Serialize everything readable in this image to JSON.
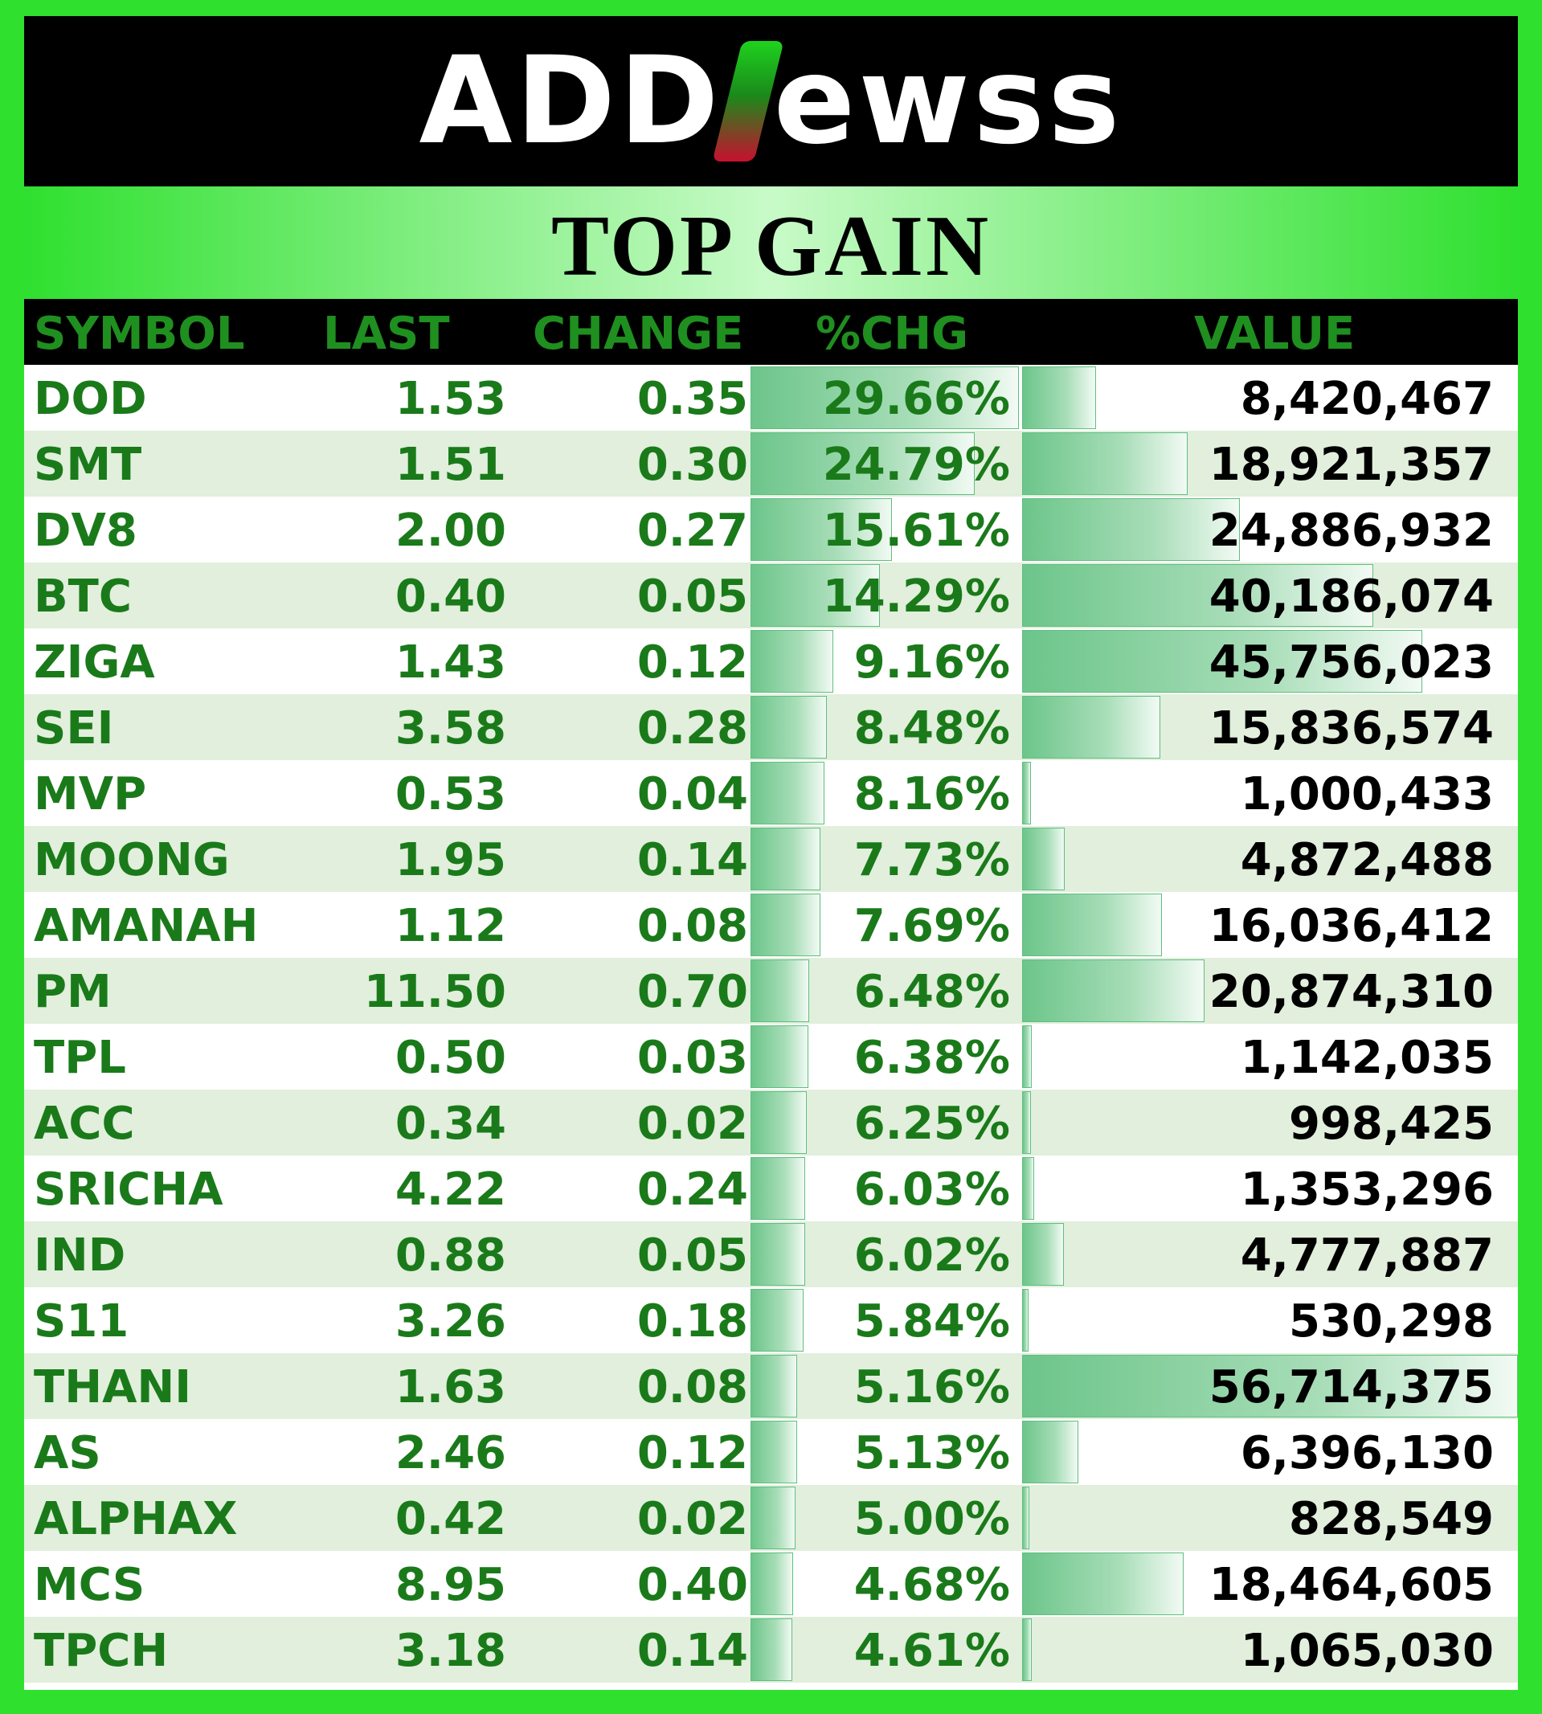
{
  "brand": {
    "prefix": "ADD",
    "suffix": "ewss"
  },
  "title": "TOP GAIN",
  "columns": [
    "SYMBOL",
    "LAST",
    "CHANGE",
    "%CHG",
    "VALUE"
  ],
  "colors": {
    "frame": "#2fe02f",
    "header_text": "#1f8f1f",
    "cell_text": "#1a7a1a",
    "value_text": "#000000",
    "bar": "#6cc58a"
  },
  "max_value": 56714375,
  "max_pct": 29.66,
  "rows": [
    {
      "symbol": "DOD",
      "last": "1.53",
      "change": "0.35",
      "pct": "29.66%",
      "value": "8,420,467",
      "pct_num": 29.66,
      "value_num": 8420467
    },
    {
      "symbol": "SMT",
      "last": "1.51",
      "change": "0.30",
      "pct": "24.79%",
      "value": "18,921,357",
      "pct_num": 24.79,
      "value_num": 18921357
    },
    {
      "symbol": "DV8",
      "last": "2.00",
      "change": "0.27",
      "pct": "15.61%",
      "value": "24,886,932",
      "pct_num": 15.61,
      "value_num": 24886932
    },
    {
      "symbol": "BTC",
      "last": "0.40",
      "change": "0.05",
      "pct": "14.29%",
      "value": "40,186,074",
      "pct_num": 14.29,
      "value_num": 40186074
    },
    {
      "symbol": "ZIGA",
      "last": "1.43",
      "change": "0.12",
      "pct": "9.16%",
      "value": "45,756,023",
      "pct_num": 9.16,
      "value_num": 45756023
    },
    {
      "symbol": "SEI",
      "last": "3.58",
      "change": "0.28",
      "pct": "8.48%",
      "value": "15,836,574",
      "pct_num": 8.48,
      "value_num": 15836574
    },
    {
      "symbol": "MVP",
      "last": "0.53",
      "change": "0.04",
      "pct": "8.16%",
      "value": "1,000,433",
      "pct_num": 8.16,
      "value_num": 1000433
    },
    {
      "symbol": "MOONG",
      "last": "1.95",
      "change": "0.14",
      "pct": "7.73%",
      "value": "4,872,488",
      "pct_num": 7.73,
      "value_num": 4872488
    },
    {
      "symbol": "AMANAH",
      "last": "1.12",
      "change": "0.08",
      "pct": "7.69%",
      "value": "16,036,412",
      "pct_num": 7.69,
      "value_num": 16036412
    },
    {
      "symbol": "PM",
      "last": "11.50",
      "change": "0.70",
      "pct": "6.48%",
      "value": "20,874,310",
      "pct_num": 6.48,
      "value_num": 20874310
    },
    {
      "symbol": "TPL",
      "last": "0.50",
      "change": "0.03",
      "pct": "6.38%",
      "value": "1,142,035",
      "pct_num": 6.38,
      "value_num": 1142035
    },
    {
      "symbol": "ACC",
      "last": "0.34",
      "change": "0.02",
      "pct": "6.25%",
      "value": "998,425",
      "pct_num": 6.25,
      "value_num": 998425
    },
    {
      "symbol": "SRICHA",
      "last": "4.22",
      "change": "0.24",
      "pct": "6.03%",
      "value": "1,353,296",
      "pct_num": 6.03,
      "value_num": 1353296
    },
    {
      "symbol": "IND",
      "last": "0.88",
      "change": "0.05",
      "pct": "6.02%",
      "value": "4,777,887",
      "pct_num": 6.02,
      "value_num": 4777887
    },
    {
      "symbol": "S11",
      "last": "3.26",
      "change": "0.18",
      "pct": "5.84%",
      "value": "530,298",
      "pct_num": 5.84,
      "value_num": 530298
    },
    {
      "symbol": "THANI",
      "last": "1.63",
      "change": "0.08",
      "pct": "5.16%",
      "value": "56,714,375",
      "pct_num": 5.16,
      "value_num": 56714375
    },
    {
      "symbol": "AS",
      "last": "2.46",
      "change": "0.12",
      "pct": "5.13%",
      "value": "6,396,130",
      "pct_num": 5.13,
      "value_num": 6396130
    },
    {
      "symbol": "ALPHAX",
      "last": "0.42",
      "change": "0.02",
      "pct": "5.00%",
      "value": "828,549",
      "pct_num": 5.0,
      "value_num": 828549
    },
    {
      "symbol": "MCS",
      "last": "8.95",
      "change": "0.40",
      "pct": "4.68%",
      "value": "18,464,605",
      "pct_num": 4.68,
      "value_num": 18464605
    },
    {
      "symbol": "TPCH",
      "last": "3.18",
      "change": "0.14",
      "pct": "4.61%",
      "value": "1,065,030",
      "pct_num": 4.61,
      "value_num": 1065030
    }
  ]
}
